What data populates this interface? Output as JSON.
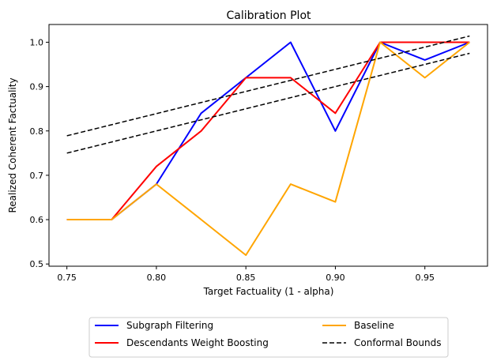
{
  "chart_data": {
    "type": "line",
    "title": "Calibration Plot",
    "xlabel": "Target Factuality (1 - alpha)",
    "ylabel": "Realized Coherent Factuality",
    "xlim": [
      0.74,
      0.985
    ],
    "ylim": [
      0.495,
      1.04
    ],
    "xticks": [
      0.75,
      0.8,
      0.85,
      0.9,
      0.95
    ],
    "xtick_labels": [
      "0.75",
      "0.80",
      "0.85",
      "0.90",
      "0.95"
    ],
    "yticks": [
      0.5,
      0.6,
      0.7,
      0.8,
      0.9,
      1.0
    ],
    "ytick_labels": [
      "0.5",
      "0.6",
      "0.7",
      "0.8",
      "0.9",
      "1.0"
    ],
    "grid": false,
    "legend_position": "bottom-center",
    "x": [
      0.75,
      0.775,
      0.8,
      0.825,
      0.85,
      0.875,
      0.9,
      0.925,
      0.95,
      0.975
    ],
    "series": [
      {
        "name": "Subgraph Filtering",
        "color": "#0000ff",
        "style": "solid",
        "values": [
          0.6,
          0.6,
          0.68,
          0.84,
          0.92,
          1.0,
          0.8,
          1.0,
          0.96,
          1.0
        ]
      },
      {
        "name": "Descendants Weight Boosting",
        "color": "#ff0000",
        "style": "solid",
        "values": [
          0.6,
          0.6,
          0.72,
          0.8,
          0.92,
          0.92,
          0.84,
          1.0,
          1.0,
          1.0
        ]
      },
      {
        "name": "Baseline",
        "color": "#ffa500",
        "style": "solid",
        "values": [
          0.6,
          0.6,
          0.68,
          0.6,
          0.52,
          0.68,
          0.64,
          1.0,
          0.92,
          1.0
        ]
      },
      {
        "name": "Conformal Bounds",
        "color": "#000000",
        "style": "dashed",
        "x": [
          0.75,
          0.975
        ],
        "values": [
          0.75,
          0.975
        ]
      },
      {
        "name": "",
        "color": "#000000",
        "style": "dashed",
        "legend": false,
        "x": [
          0.75,
          0.975
        ],
        "values": [
          0.789,
          1.014
        ]
      }
    ]
  }
}
